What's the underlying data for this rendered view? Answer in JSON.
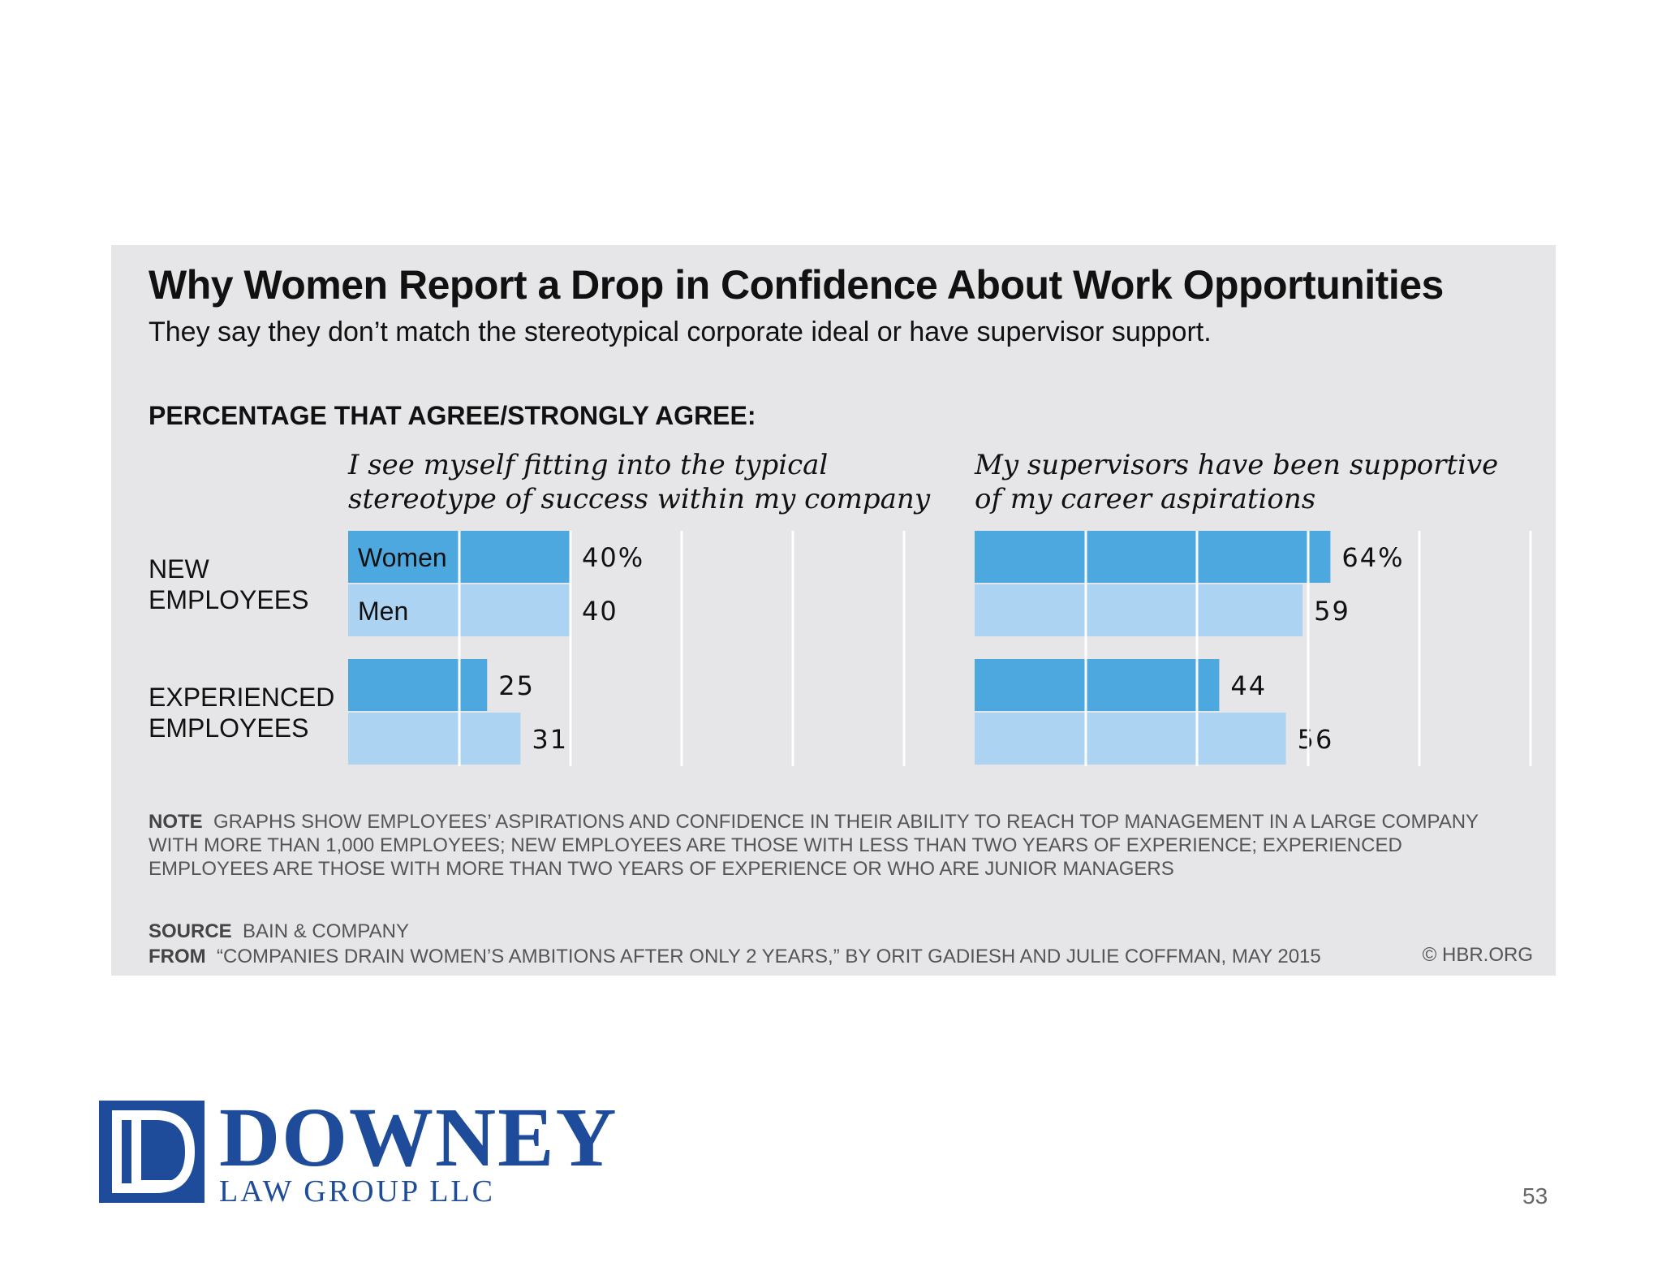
{
  "title": "Why Women Report a Drop in Confidence About Work Opportunities",
  "subtitle": "They say they don’t match the stereotypical corporate ideal or have supervisor support.",
  "section_label": "PERCENTAGE THAT AGREE/STRONGLY AGREE:",
  "panel_titles": [
    [
      "I see myself fitting into the typical",
      "stereotype of success within my company"
    ],
    [
      "My supervisors have been supportive",
      "of my career aspirations"
    ]
  ],
  "group_labels": [
    [
      "NEW",
      "EMPLOYEES"
    ],
    [
      "EXPERIENCED",
      "EMPLOYEES"
    ]
  ],
  "colors": {
    "women": "#4ea8e0",
    "men": "#acd4f2",
    "card": "#e6e6e8",
    "grid": "#ffffff",
    "logo": "#1e4c9a"
  },
  "chart_data": {
    "type": "bar",
    "orientation": "horizontal",
    "unit": "%",
    "xlim": [
      0,
      100
    ],
    "grid": true,
    "legend": "inline on first panel bars",
    "groups": [
      "NEW EMPLOYEES",
      "EXPERIENCED EMPLOYEES"
    ],
    "series": [
      {
        "name": "Women",
        "color": "#4ea8e0"
      },
      {
        "name": "Men",
        "color": "#acd4f2"
      }
    ],
    "panels": [
      {
        "title": "I see myself fitting into the typical stereotype of success within my company",
        "values": {
          "Women": [
            40,
            25
          ],
          "Men": [
            40,
            31
          ]
        },
        "labels": {
          "Women": [
            "40%",
            "25"
          ],
          "Men": [
            "40",
            "31"
          ]
        }
      },
      {
        "title": "My supervisors have been supportive of my career aspirations",
        "values": {
          "Women": [
            64,
            44
          ],
          "Men": [
            59,
            56
          ]
        },
        "labels": {
          "Women": [
            "64%",
            "44"
          ],
          "Men": [
            "59",
            "56"
          ]
        }
      }
    ]
  },
  "note_label": "NOTE",
  "note_text": "GRAPHS SHOW EMPLOYEES’ ASPIRATIONS AND CONFIDENCE IN THEIR ABILITY TO REACH TOP MANAGEMENT IN A LARGE COMPANY WITH MORE THAN 1,000 EMPLOYEES; NEW EMPLOYEES ARE THOSE WITH LESS THAN TWO YEARS OF EXPERIENCE; EXPERIENCED EMPLOYEES ARE THOSE WITH MORE THAN TWO YEARS OF EXPERIENCE OR WHO ARE JUNIOR MANAGERS",
  "source_label": "SOURCE",
  "source_text": "BAIN & COMPANY",
  "from_label": "FROM",
  "from_text": "“COMPANIES DRAIN WOMEN’S AMBITIONS AFTER ONLY 2 YEARS,” BY ORIT GADIESH AND JULIE COFFMAN, MAY 2015",
  "copyright": "© HBR.ORG",
  "logo": {
    "name": "DOWNEY",
    "sub": "LAW GROUP LLC",
    "monogram": "DL"
  },
  "page_number": "53"
}
